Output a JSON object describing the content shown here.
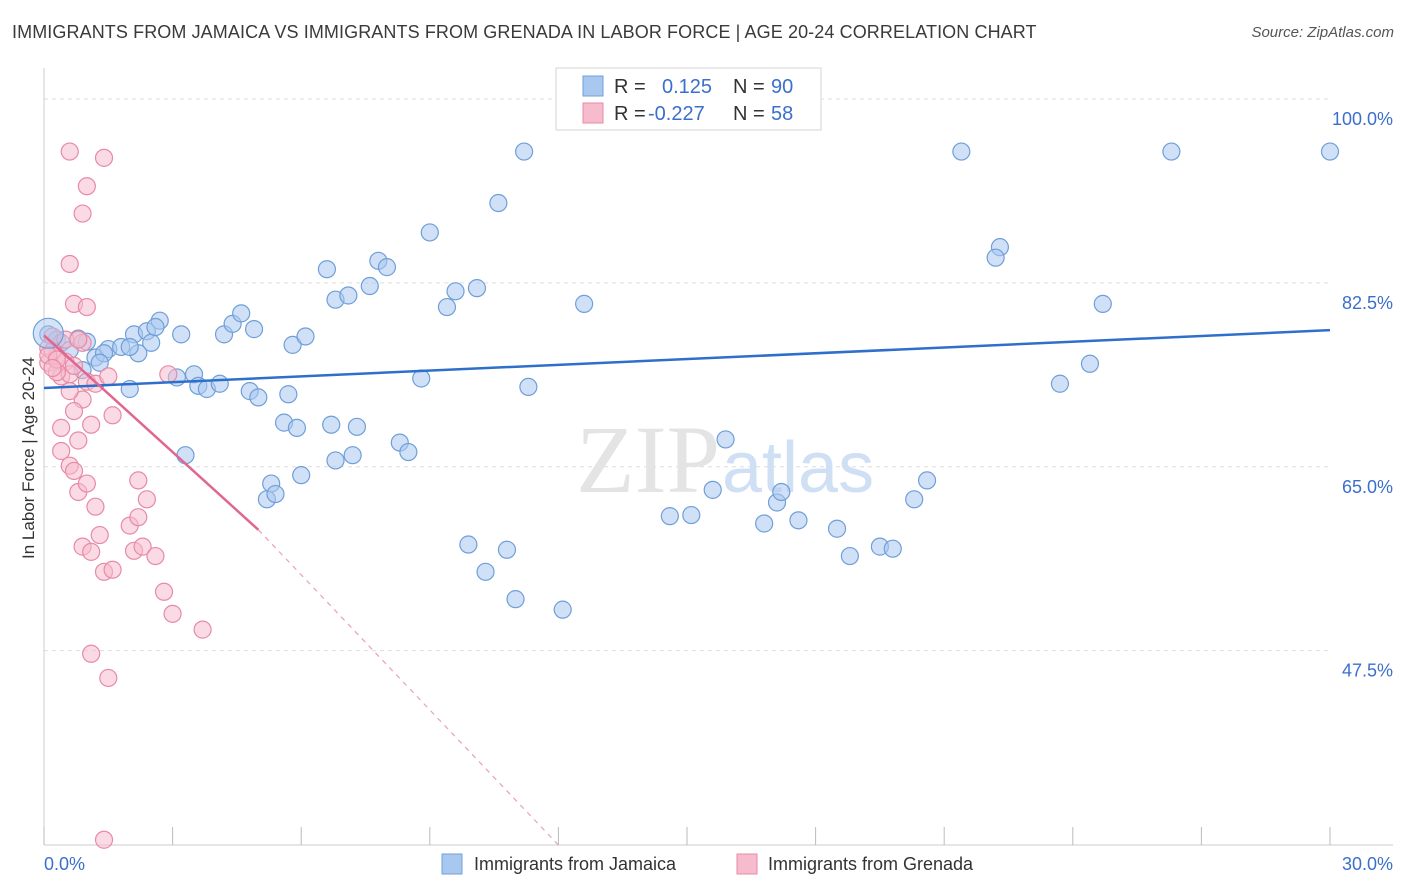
{
  "header": {
    "title": "IMMIGRANTS FROM JAMAICA VS IMMIGRANTS FROM GRENADA IN LABOR FORCE | AGE 20-24 CORRELATION CHART",
    "source": "Source: ZipAtlas.com"
  },
  "watermark": {
    "zip": "ZIP",
    "atlas": "atlas"
  },
  "legend": {
    "r_label": "R =",
    "n_label": "N =",
    "rows": [
      {
        "r": "0.125",
        "n": "90"
      },
      {
        "r": "-0.227",
        "n": "58"
      }
    ]
  },
  "bottom_legend": [
    "Immigrants from Jamaica",
    "Immigrants from Grenada"
  ],
  "colors": {
    "jamaica_fill": "#a9c8f0",
    "jamaica_stroke": "#6f9fd8",
    "jamaica_line": "#2f6fcc",
    "grenada_fill": "#f6bccd",
    "grenada_stroke": "#e88aa6",
    "grenada_line": "#e06690",
    "value_text": "#3b6fcc",
    "grid": "#dddddd"
  },
  "chart_data": {
    "type": "scatter",
    "title": "IMMIGRANTS FROM JAMAICA VS IMMIGRANTS FROM GRENADA IN LABOR FORCE | AGE 20-24 CORRELATION CHART",
    "xlabel": "",
    "ylabel": "In Labor Force | Age 20-24",
    "xlim": [
      0,
      30
    ],
    "ylim": [
      29,
      102
    ],
    "x_tick_labels": [
      "0.0%",
      "30.0%"
    ],
    "y_ticks": [
      100,
      82.5,
      65,
      47.5
    ],
    "y_tick_labels": [
      "100.0%",
      "82.5%",
      "65.0%",
      "47.5%"
    ],
    "grid": true,
    "legend_position": "top-center",
    "series": [
      {
        "name": "Immigrants from Jamaica",
        "r": 0.125,
        "n": 90,
        "trend": {
          "x0": 0,
          "y0": 72.5,
          "x1": 30,
          "y1": 78.0
        },
        "points": [
          [
            0.1,
            77.6
          ],
          [
            0.3,
            77.1
          ],
          [
            0.4,
            76.8
          ],
          [
            0.6,
            76.1
          ],
          [
            0.8,
            77.2
          ],
          [
            1.0,
            76.9
          ],
          [
            0.9,
            74.2
          ],
          [
            1.2,
            75.4
          ],
          [
            1.5,
            76.2
          ],
          [
            1.4,
            75.8
          ],
          [
            1.3,
            74.9
          ],
          [
            1.8,
            76.4
          ],
          [
            2.1,
            77.6
          ],
          [
            2.4,
            77.9
          ],
          [
            2.5,
            76.8
          ],
          [
            2.2,
            75.8
          ],
          [
            2.0,
            76.4
          ],
          [
            2.7,
            78.9
          ],
          [
            2.6,
            78.3
          ],
          [
            3.2,
            77.6
          ],
          [
            3.1,
            73.5
          ],
          [
            3.5,
            73.8
          ],
          [
            3.6,
            72.7
          ],
          [
            3.8,
            72.4
          ],
          [
            4.1,
            72.9
          ],
          [
            4.2,
            77.6
          ],
          [
            4.4,
            78.6
          ],
          [
            4.6,
            79.6
          ],
          [
            4.9,
            78.1
          ],
          [
            4.8,
            72.2
          ],
          [
            5.0,
            71.6
          ],
          [
            5.7,
            71.9
          ],
          [
            5.6,
            69.2
          ],
          [
            5.9,
            68.7
          ],
          [
            5.8,
            76.6
          ],
          [
            6.1,
            77.4
          ],
          [
            6.6,
            83.8
          ],
          [
            6.8,
            80.9
          ],
          [
            7.1,
            81.3
          ],
          [
            7.6,
            82.2
          ],
          [
            7.8,
            84.6
          ],
          [
            8.0,
            84.0
          ],
          [
            8.8,
            73.4
          ],
          [
            9.0,
            87.3
          ],
          [
            9.6,
            81.7
          ],
          [
            9.4,
            80.2
          ],
          [
            10.1,
            82.0
          ],
          [
            10.6,
            90.1
          ],
          [
            2.0,
            72.4
          ],
          [
            3.3,
            66.1
          ],
          [
            5.2,
            61.9
          ],
          [
            5.3,
            63.4
          ],
          [
            5.4,
            62.4
          ],
          [
            6.0,
            64.2
          ],
          [
            6.7,
            69.0
          ],
          [
            7.2,
            66.1
          ],
          [
            6.8,
            65.6
          ],
          [
            7.3,
            68.8
          ],
          [
            8.3,
            67.3
          ],
          [
            8.5,
            66.4
          ],
          [
            9.9,
            57.6
          ],
          [
            10.3,
            55.0
          ],
          [
            10.8,
            57.1
          ],
          [
            11.0,
            52.4
          ],
          [
            12.1,
            51.4
          ],
          [
            11.3,
            72.6
          ],
          [
            12.6,
            80.5
          ],
          [
            14.6,
            60.3
          ],
          [
            15.1,
            60.4
          ],
          [
            15.6,
            62.8
          ],
          [
            15.9,
            67.6
          ],
          [
            17.1,
            61.6
          ],
          [
            16.8,
            59.6
          ],
          [
            17.2,
            62.6
          ],
          [
            17.6,
            59.9
          ],
          [
            18.5,
            59.1
          ],
          [
            18.8,
            56.5
          ],
          [
            19.5,
            57.4
          ],
          [
            19.8,
            57.2
          ],
          [
            20.3,
            61.9
          ],
          [
            20.6,
            63.7
          ],
          [
            22.3,
            85.9
          ],
          [
            22.2,
            84.9
          ],
          [
            24.4,
            74.8
          ],
          [
            23.7,
            72.9
          ],
          [
            24.7,
            80.5
          ],
          [
            30.0,
            95.0
          ],
          [
            26.3,
            95.0
          ],
          [
            21.4,
            95.0
          ],
          [
            11.2,
            95.0
          ]
        ]
      },
      {
        "name": "Immigrants from Grenada",
        "r": -0.227,
        "n": 58,
        "trend": {
          "x0": 0,
          "y0": 77.5,
          "x1": 5.0,
          "y1": 59.0
        },
        "trend_extension": {
          "x0": 5.0,
          "y0": 59.0,
          "x1": 12.0,
          "y1": 29.0
        },
        "points": [
          [
            0.1,
            76.3
          ],
          [
            0.2,
            77.4
          ],
          [
            0.3,
            75.5
          ],
          [
            0.1,
            74.9
          ],
          [
            0.4,
            73.6
          ],
          [
            0.2,
            76.0
          ],
          [
            0.5,
            75.0
          ],
          [
            0.6,
            73.8
          ],
          [
            0.3,
            74.0
          ],
          [
            0.7,
            74.6
          ],
          [
            0.1,
            75.6
          ],
          [
            0.9,
            76.8
          ],
          [
            0.5,
            77.1
          ],
          [
            0.3,
            75.2
          ],
          [
            0.2,
            74.4
          ],
          [
            1.0,
            73.1
          ],
          [
            1.2,
            72.9
          ],
          [
            1.5,
            73.6
          ],
          [
            0.9,
            71.4
          ],
          [
            0.6,
            72.2
          ],
          [
            0.7,
            70.3
          ],
          [
            0.4,
            68.7
          ],
          [
            0.8,
            67.5
          ],
          [
            1.1,
            69.0
          ],
          [
            0.4,
            66.5
          ],
          [
            0.6,
            65.1
          ],
          [
            0.7,
            64.6
          ],
          [
            0.8,
            62.6
          ],
          [
            1.0,
            63.4
          ],
          [
            1.2,
            61.2
          ],
          [
            1.3,
            58.5
          ],
          [
            0.9,
            57.4
          ],
          [
            1.1,
            56.9
          ],
          [
            1.4,
            55.0
          ],
          [
            1.6,
            55.2
          ],
          [
            2.0,
            59.4
          ],
          [
            2.2,
            60.2
          ],
          [
            2.1,
            57.0
          ],
          [
            2.3,
            57.4
          ],
          [
            2.4,
            61.9
          ],
          [
            2.2,
            63.7
          ],
          [
            2.6,
            56.5
          ],
          [
            2.8,
            53.1
          ],
          [
            3.0,
            51.0
          ],
          [
            3.7,
            49.5
          ],
          [
            1.1,
            47.2
          ],
          [
            1.5,
            44.9
          ],
          [
            1.4,
            94.4
          ],
          [
            1.0,
            91.7
          ],
          [
            0.9,
            89.1
          ],
          [
            0.6,
            84.3
          ],
          [
            0.7,
            80.5
          ],
          [
            1.0,
            80.2
          ],
          [
            0.8,
            77.1
          ],
          [
            1.6,
            69.9
          ],
          [
            2.9,
            73.8
          ],
          [
            1.4,
            29.5
          ],
          [
            0.6,
            95.0
          ]
        ]
      }
    ]
  }
}
